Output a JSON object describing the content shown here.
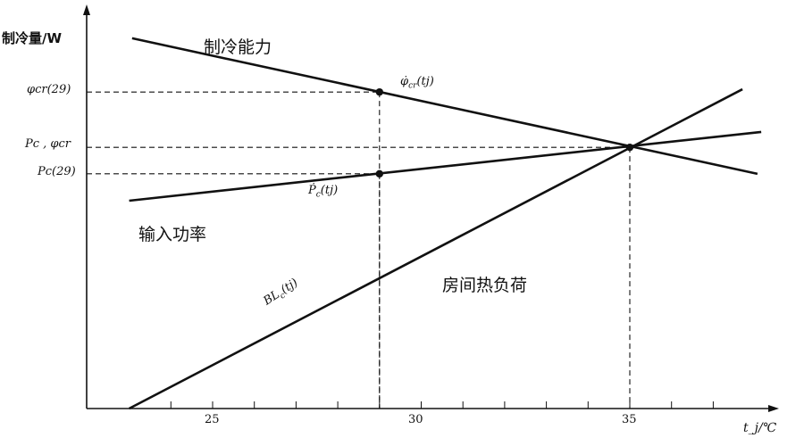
{
  "chart_data": {
    "type": "line",
    "ylabel": "制冷量/W",
    "xlabel": "t_j/℃",
    "xlim": [
      22,
      38.5
    ],
    "ylim": [
      0,
      100
    ],
    "x_ticks": [
      25,
      30,
      35
    ],
    "x_minor_tick_step": 1,
    "grid": false,
    "y_tick_labels": [
      "φcr(29)",
      "Pc , φcr",
      "Pc(29)"
    ],
    "series": [
      {
        "name": "制冷能力",
        "curve_label": "φ̇cr(tj)",
        "x": [
          23.07,
          38.06
        ],
        "y": [
          93.7,
          59.4
        ]
      },
      {
        "name": "输入功率",
        "curve_label": "Ṗc(tj)",
        "x": [
          23.0,
          38.15
        ],
        "y": [
          52.6,
          70.0
        ]
      },
      {
        "name": "房间热负荷",
        "curve_label": "BLc(tj)",
        "x": [
          23.0,
          37.7
        ],
        "y": [
          0,
          80.8
        ]
      }
    ],
    "points": [
      {
        "x": 29,
        "y": 80.1,
        "label": "φcr(29)"
      },
      {
        "x": 29,
        "y": 59.4,
        "label": "Pc(29)"
      },
      {
        "x": 35,
        "y": 66.1,
        "label": "Pc , φcr"
      }
    ],
    "annotations": {
      "capacity": "制冷能力",
      "power": "输入功率",
      "load": "房间热负荷",
      "phi_curve": "φ̇",
      "phi_sub": "cr",
      "p_curve": "Ṗ",
      "p_sub": "c",
      "bl_curve": "BL",
      "bl_sub": "c",
      "arg": "(tj)"
    },
    "colors": {
      "ink": "#111111"
    }
  }
}
